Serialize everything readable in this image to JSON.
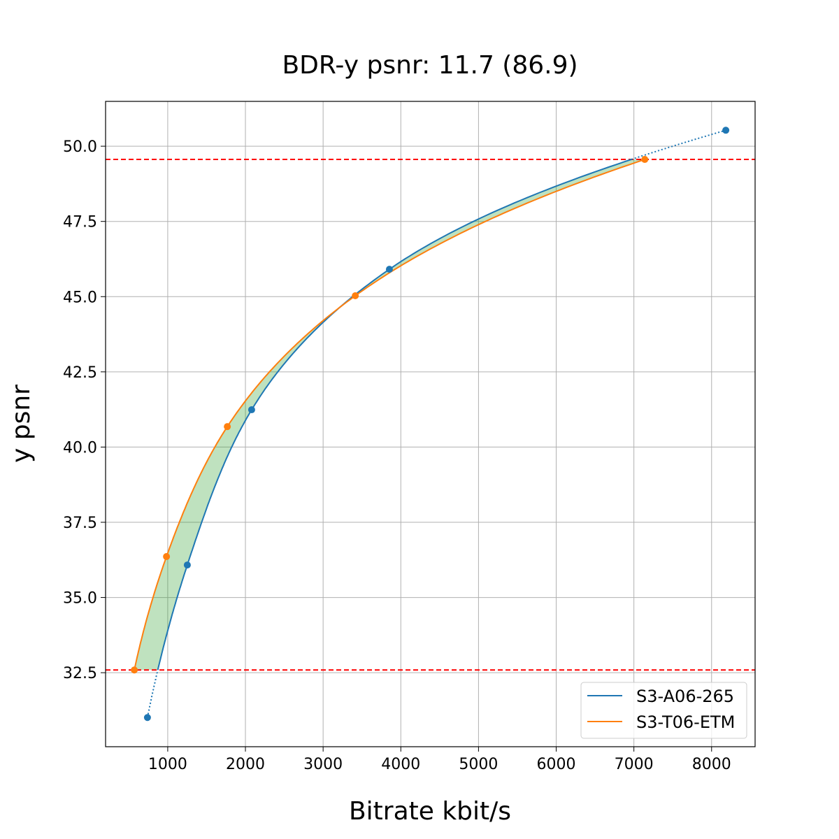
{
  "chart_data": {
    "type": "line",
    "title": "BDR-y psnr: 11.7 (86.9)",
    "xlabel": "Bitrate kbit/s",
    "ylabel": "y psnr",
    "xlim": [
      200,
      8560
    ],
    "ylim": [
      30.04,
      51.49
    ],
    "xticks": [
      1000,
      2000,
      3000,
      4000,
      5000,
      6000,
      7000,
      8000
    ],
    "xtick_labels": [
      "1000",
      "2000",
      "3000",
      "4000",
      "5000",
      "6000",
      "7000",
      "8000"
    ],
    "yticks": [
      32.5,
      35.0,
      37.5,
      40.0,
      42.5,
      45.0,
      47.5,
      50.0
    ],
    "ytick_labels": [
      "32.5",
      "35.0",
      "37.5",
      "40.0",
      "42.5",
      "45.0",
      "47.5",
      "50.0"
    ],
    "grid": true,
    "legend_position": "bottom-right",
    "series": [
      {
        "name": "S3-A06-265",
        "color": "#1f77b4",
        "x": [
          739,
          1252,
          2080,
          3853,
          8183
        ],
        "y": [
          31.01,
          36.08,
          41.24,
          45.91,
          50.53
        ]
      },
      {
        "name": "S3-T06-ETM",
        "color": "#ff7f0e",
        "x": [
          570,
          984,
          1767,
          3414,
          7140
        ],
        "y": [
          32.59,
          36.36,
          40.68,
          45.03,
          49.56
        ]
      }
    ],
    "reference_lines": {
      "y": [
        32.59,
        49.56
      ],
      "color": "#ff0000",
      "style": "dashed"
    },
    "fill_between": {
      "color": "#2ca02c",
      "opacity": 0.3,
      "y_range": [
        32.59,
        49.56
      ]
    }
  }
}
